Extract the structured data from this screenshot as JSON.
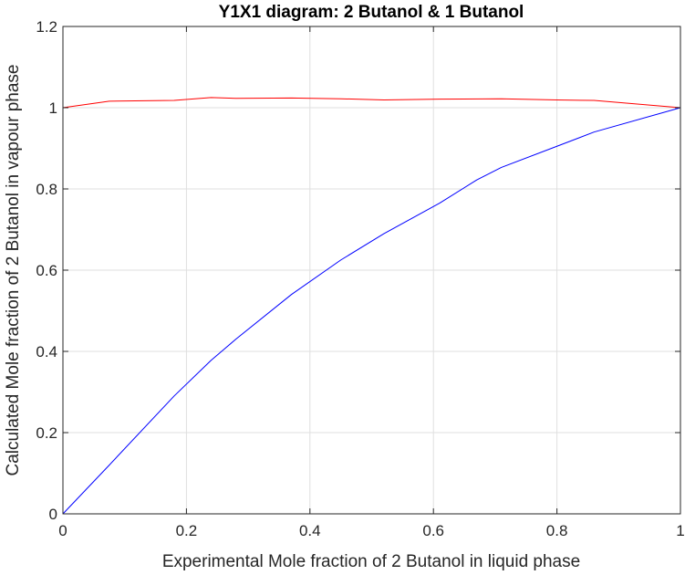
{
  "chart_data": {
    "type": "line",
    "title": "Y1X1 diagram: 2 Butanol & 1 Butanol",
    "xlabel": "Experimental Mole fraction of 2 Butanol in liquid phase",
    "ylabel": "Calculated Mole fraction of 2 Butanol in vapour phase",
    "xlim": [
      0,
      1
    ],
    "ylim": [
      0,
      1.2
    ],
    "xticks": [
      0,
      0.2,
      0.4,
      0.6,
      0.8,
      1
    ],
    "yticks": [
      0,
      0.2,
      0.4,
      0.6,
      0.8,
      1,
      1.2
    ],
    "xtick_labels": [
      "0",
      "0.2",
      "0.4",
      "0.6",
      "0.8",
      "1"
    ],
    "ytick_labels": [
      "0",
      "0.2",
      "0.4",
      "0.6",
      "0.8",
      "1",
      "1.2"
    ],
    "grid": true,
    "legend": "none",
    "series": [
      {
        "color": "#ff0000",
        "x": [
          0,
          0.075,
          0.18,
          0.24,
          0.28,
          0.37,
          0.45,
          0.52,
          0.61,
          0.71,
          0.8,
          0.86,
          1.0
        ],
        "y": [
          1.0,
          1.016,
          1.018,
          1.025,
          1.023,
          1.024,
          1.022,
          1.019,
          1.021,
          1.022,
          1.019,
          1.018,
          1.0
        ]
      },
      {
        "color": "#0000ff",
        "x": [
          0,
          0.075,
          0.18,
          0.24,
          0.28,
          0.37,
          0.45,
          0.52,
          0.61,
          0.67,
          0.71,
          0.8,
          0.86,
          1.0
        ],
        "y": [
          0,
          0.12,
          0.29,
          0.378,
          0.43,
          0.54,
          0.625,
          0.69,
          0.765,
          0.822,
          0.853,
          0.905,
          0.94,
          1.0
        ]
      }
    ]
  }
}
